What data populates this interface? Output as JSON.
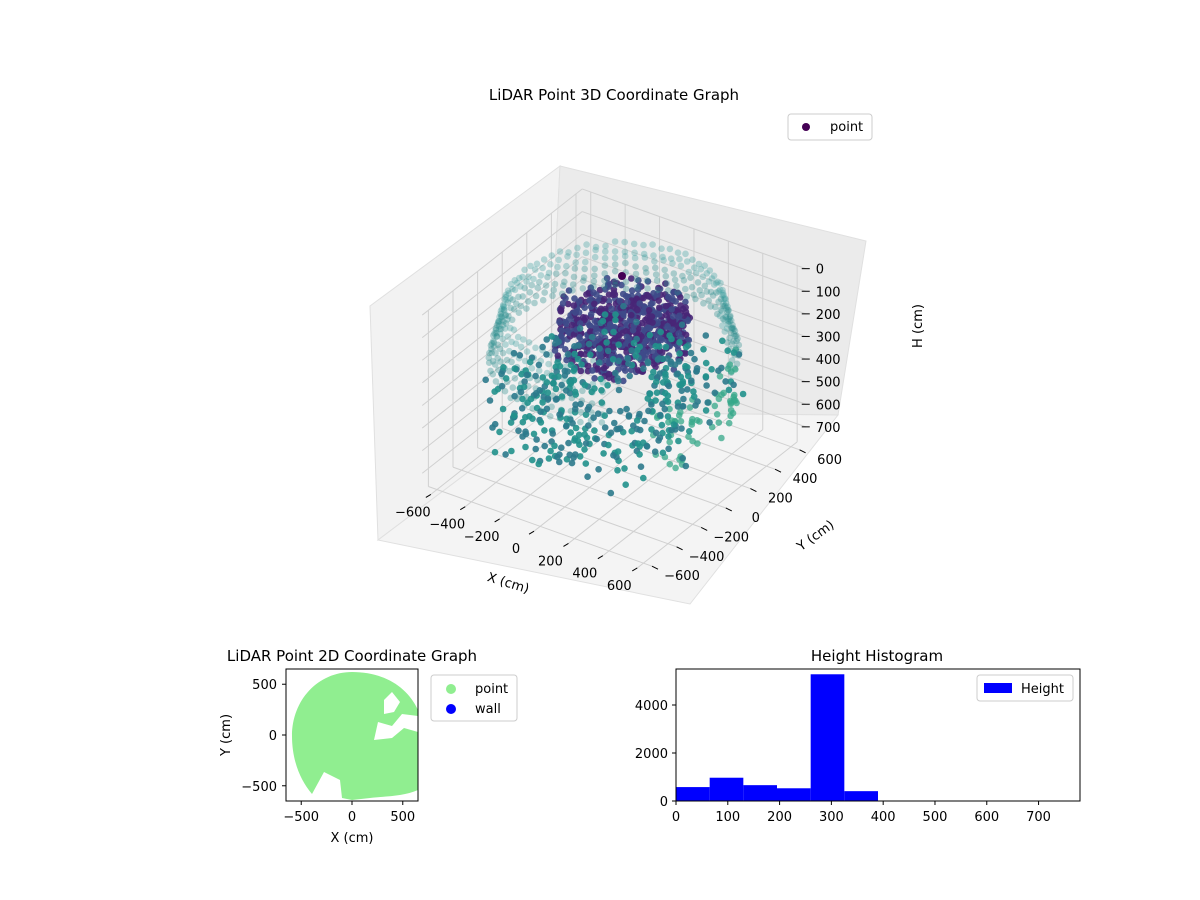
{
  "colors": {
    "scatter_dark": "#440154",
    "scatter_mid": "#31688e",
    "scatter_teal": "#21918c",
    "scatter_green": "#35b779",
    "point_2d": "#90ee90",
    "wall_2d": "#0000ff",
    "histogram": "#0000ff"
  },
  "chart_data": [
    {
      "type": "scatter",
      "projection": "3d",
      "title": "LiDAR Point 3D Coordinate Graph",
      "xlabel": "X (cm)",
      "ylabel": "Y (cm)",
      "zlabel": "H (cm)",
      "xlim": [
        -650,
        650
      ],
      "ylim": [
        -650,
        650
      ],
      "zlim": [
        780,
        0
      ],
      "z_inverted": true,
      "xticks": [
        "−600",
        "−400",
        "−200",
        "0",
        "200",
        "400",
        "600"
      ],
      "yticks": [
        "−600",
        "−400",
        "−200",
        "0",
        "200",
        "400",
        "600"
      ],
      "zticks": [
        "0",
        "100",
        "200",
        "300",
        "400",
        "500",
        "600",
        "700"
      ],
      "legend": {
        "position": "top-right",
        "entries": [
          "point"
        ]
      },
      "colormap": "viridis",
      "series": [
        {
          "name": "point",
          "description_points": {
            "ring_radius_cm": 560,
            "ring_height_cm": 300,
            "inner_cluster_height_range_cm": [
              250,
              330
            ],
            "floor_points_height_range_cm": [
              330,
              390
            ]
          }
        }
      ],
      "grid": true
    },
    {
      "type": "scatter",
      "title": "LiDAR Point 2D Coordinate Graph",
      "xlabel": "X (cm)",
      "ylabel": "Y (cm)",
      "xlim": [
        -650,
        650
      ],
      "ylim": [
        -650,
        650
      ],
      "xticks": [
        "−500",
        "0",
        "500"
      ],
      "yticks": [
        "500",
        "0",
        "−500"
      ],
      "legend": {
        "position": "outside-right",
        "entries": [
          "point",
          "wall"
        ]
      },
      "series": [
        {
          "name": "point",
          "shape": "filled disc, radius ~600 cm with notches on right side"
        },
        {
          "name": "wall",
          "points": []
        }
      ],
      "grid": false
    },
    {
      "type": "bar",
      "subtype": "histogram",
      "title": "Height Histogram",
      "xlim": [
        0,
        780
      ],
      "ylim": [
        0,
        5500
      ],
      "xticks": [
        "0",
        "100",
        "200",
        "300",
        "400",
        "500",
        "600",
        "700"
      ],
      "yticks": [
        "0",
        "2000",
        "4000"
      ],
      "legend": {
        "position": "top-right",
        "entries": [
          "Height"
        ]
      },
      "bins": [
        {
          "x0": 0,
          "x1": 65,
          "count": 580
        },
        {
          "x0": 65,
          "x1": 130,
          "count": 970
        },
        {
          "x0": 130,
          "x1": 195,
          "count": 660
        },
        {
          "x0": 195,
          "x1": 260,
          "count": 530
        },
        {
          "x0": 260,
          "x1": 325,
          "count": 5280
        },
        {
          "x0": 325,
          "x1": 390,
          "count": 410
        }
      ],
      "series": [
        {
          "name": "Height"
        }
      ],
      "grid": false
    }
  ]
}
